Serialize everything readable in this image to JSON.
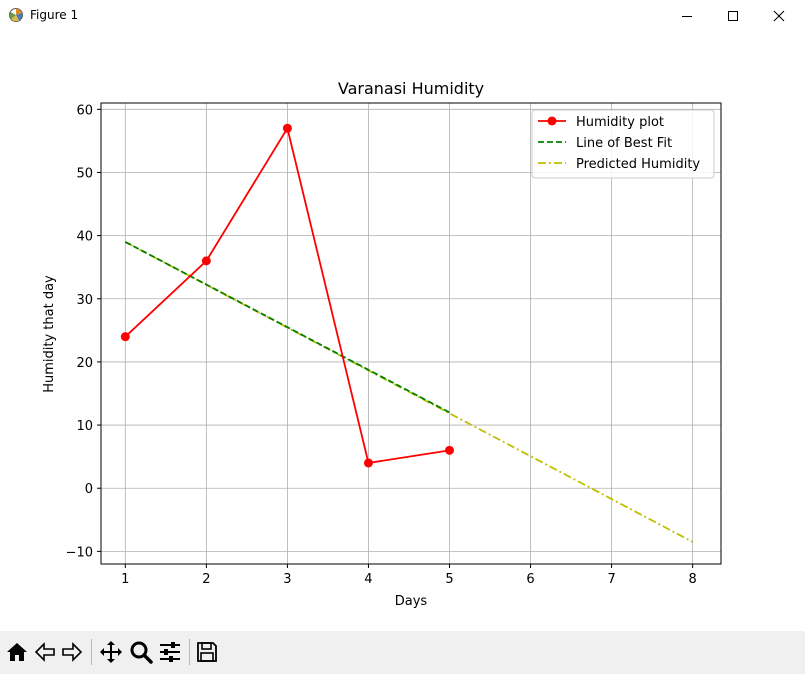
{
  "window": {
    "title": "Figure 1"
  },
  "toolbar": {
    "tools": [
      "home-icon",
      "back-icon",
      "forward-icon",
      "pan-icon",
      "zoom-icon",
      "configure-subplots-icon",
      "save-icon"
    ]
  },
  "chart_data": {
    "type": "line",
    "title": "Varanasi Humidity",
    "xlabel": "Days",
    "ylabel": "Humidity that day",
    "xlim": [
      0.7,
      8.35
    ],
    "ylim": [
      -12,
      61
    ],
    "xticks": [
      "1",
      "2",
      "3",
      "4",
      "5",
      "6",
      "7",
      "8"
    ],
    "yticks": [
      "−10",
      "0",
      "10",
      "20",
      "30",
      "40",
      "50",
      "60"
    ],
    "grid": true,
    "legend_position": "top-right",
    "series": [
      {
        "name": "Humidity plot",
        "style": "solid-with-markers",
        "color": "#ff0000",
        "x": [
          1,
          2,
          3,
          4,
          5
        ],
        "y": [
          24,
          36,
          57,
          4,
          6
        ]
      },
      {
        "name": "Line of Best Fit",
        "style": "dashed",
        "color": "#008000",
        "x": [
          1,
          5
        ],
        "y": [
          39,
          12
        ]
      },
      {
        "name": "Predicted Humidity",
        "style": "dash-dot",
        "color": "#bfbf00",
        "x": [
          1,
          8
        ],
        "y": [
          39,
          -8.5
        ]
      }
    ]
  }
}
